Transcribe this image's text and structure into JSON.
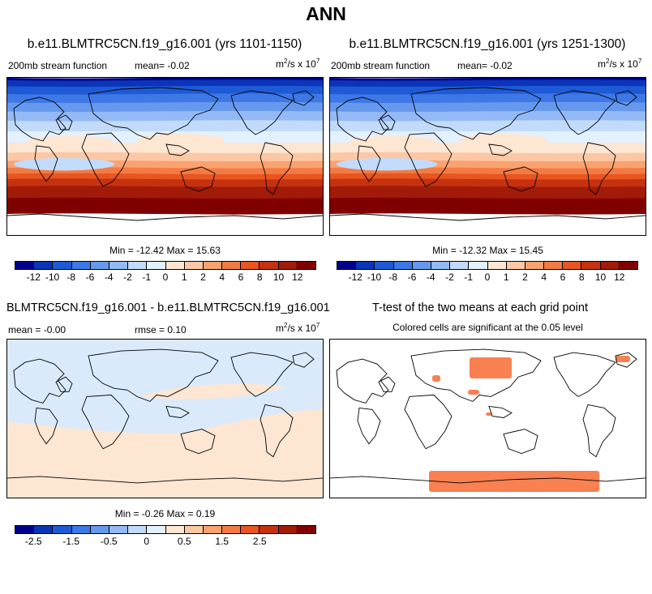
{
  "main_title": "ANN",
  "panels": {
    "p1": {
      "title": "b.e11.BLMTRC5CN.f19_g16.001 (yrs 1101-1150)",
      "var_label": "200mb stream function",
      "mean_label": "mean=",
      "mean": "-0.02",
      "units_base": "m",
      "units_exp1": "2",
      "units_mid": "/s x 10",
      "units_exp2": "7",
      "minmax": "Min = -12.42 Max =  15.63"
    },
    "p2": {
      "title": "b.e11.BLMTRC5CN.f19_g16.001 (yrs 1251-1300)",
      "var_label": "200mb stream function",
      "mean_label": "mean=",
      "mean": "-0.02",
      "units_base": "m",
      "units_exp1": "2",
      "units_mid": "/s x 10",
      "units_exp2": "7",
      "minmax": "Min = -12.32 Max =  15.45"
    },
    "p3": {
      "title": "BLMTRC5CN.f19_g16.001 - b.e11.BLMTRC5CN.f19_g16.001",
      "mean_label": "mean =",
      "mean": "-0.00",
      "rmse_label": "rmse =",
      "rmse": "0.10",
      "units_base": "m",
      "units_exp1": "2",
      "units_mid": "/s x 10",
      "units_exp2": "7",
      "minmax": "Min =  -0.26 Max =  0.19"
    },
    "p4": {
      "title": "T-test of the two means at each grid point",
      "subtitle": "Colored cells are significant at the 0.05 level"
    }
  },
  "colorbars": {
    "main": {
      "colors": [
        "#00008b",
        "#0a35b8",
        "#1e5ad6",
        "#3d78e6",
        "#6699ee",
        "#94baf5",
        "#c2dbfb",
        "#e3f0fe",
        "#fde6d2",
        "#fcc7a4",
        "#f9a270",
        "#f47a44",
        "#e8551f",
        "#c63210",
        "#a11b08",
        "#800000"
      ],
      "labels": [
        "-12",
        "-10",
        "-8",
        "-6",
        "-4",
        "-2",
        "-1",
        "0",
        "1",
        "2",
        "4",
        "6",
        "8",
        "10",
        "12"
      ]
    },
    "diff": {
      "colors": [
        "#00008b",
        "#0a35b8",
        "#1e5ad6",
        "#3d78e6",
        "#6699ee",
        "#94baf5",
        "#c2dbfb",
        "#e3f0fe",
        "#fde6d2",
        "#fcc7a4",
        "#f9a270",
        "#f47a44",
        "#e8551f",
        "#c63210",
        "#a11b08",
        "#800000"
      ],
      "labels": [
        "-2.5",
        "-1.5",
        "-0.5",
        "0",
        "0.5",
        "1.5",
        "2.5"
      ]
    }
  },
  "colors": {
    "significant": "#f98050",
    "diff_positive": "#fde6d2",
    "diff_negative": "#dbeafb"
  }
}
